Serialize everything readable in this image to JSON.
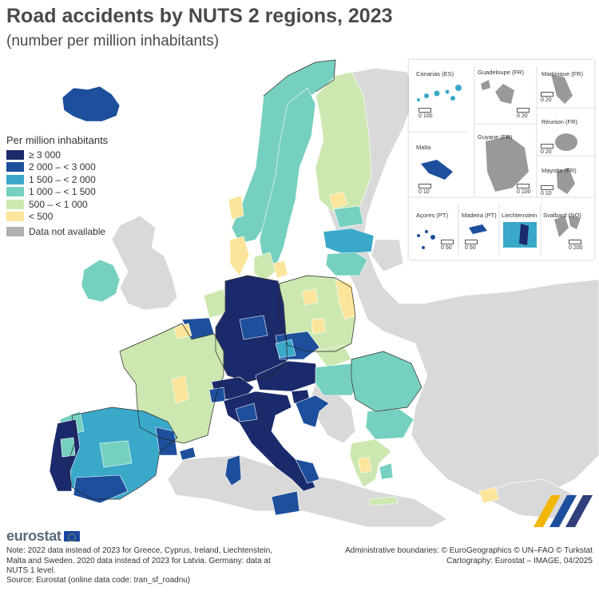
{
  "title": "Road accidents by NUTS 2 regions, 2023",
  "subtitle": "(number per million inhabitants)",
  "legend": {
    "title": "Per million inhabitants",
    "classes": [
      {
        "label": "≥ 3 000",
        "color": "#1b2a6b"
      },
      {
        "label": "2 000 – < 3 000",
        "color": "#1d4f9c"
      },
      {
        "label": "1 500 – < 2 000",
        "color": "#3aa9c9"
      },
      {
        "label": "1 000 – < 1 500",
        "color": "#76d0bf"
      },
      {
        "label": "500 – < 1 000",
        "color": "#cce8b0"
      },
      {
        "label": "< 500",
        "color": "#fbe59a"
      }
    ],
    "not_available": {
      "label": "Data not available",
      "color": "#b0b0b0"
    }
  },
  "colors": {
    "sea": "#ffffff",
    "non_eu_land": "#d9d9d9",
    "border": "#222222"
  },
  "insets": [
    {
      "label": "Canarias (ES)",
      "scale": "0   100"
    },
    {
      "label": "Guadeloupe (FR)",
      "scale": "0  20"
    },
    {
      "label": "Martinique (FR)",
      "scale": "0  20"
    },
    {
      "label": "Réunion (FR)",
      "scale": "0  20"
    },
    {
      "label": "Malta",
      "scale": "0  10"
    },
    {
      "label": "Guyane (FR)",
      "scale": "0   100"
    },
    {
      "label": "Mayotte (FR)",
      "scale": "0  10"
    },
    {
      "label": "Açores (PT)",
      "scale": "0  50"
    },
    {
      "label": "Madeira (PT)",
      "scale": "0   50"
    },
    {
      "label": "Liechtenstein",
      "scale": ""
    },
    {
      "label": "Svalbard (NO)",
      "scale": "0   200"
    }
  ],
  "brand": "eurostat",
  "note": "Note: 2022 data instead of 2023 for Greece, Cyprus, Ireland, Liechtenstein, Malta and Sweden. 2020 data instead of 2023 for Latvia. Germany: data at NUTS 1 level.",
  "source": "Source: Eurostat (online data code: tran_sf_roadnu)",
  "admin_line1": "Administrative boundaries: © EuroGeographics © UN–FAO © Turkstat",
  "admin_line2": "Cartography: Eurostat – IMAGE, 04/2025"
}
